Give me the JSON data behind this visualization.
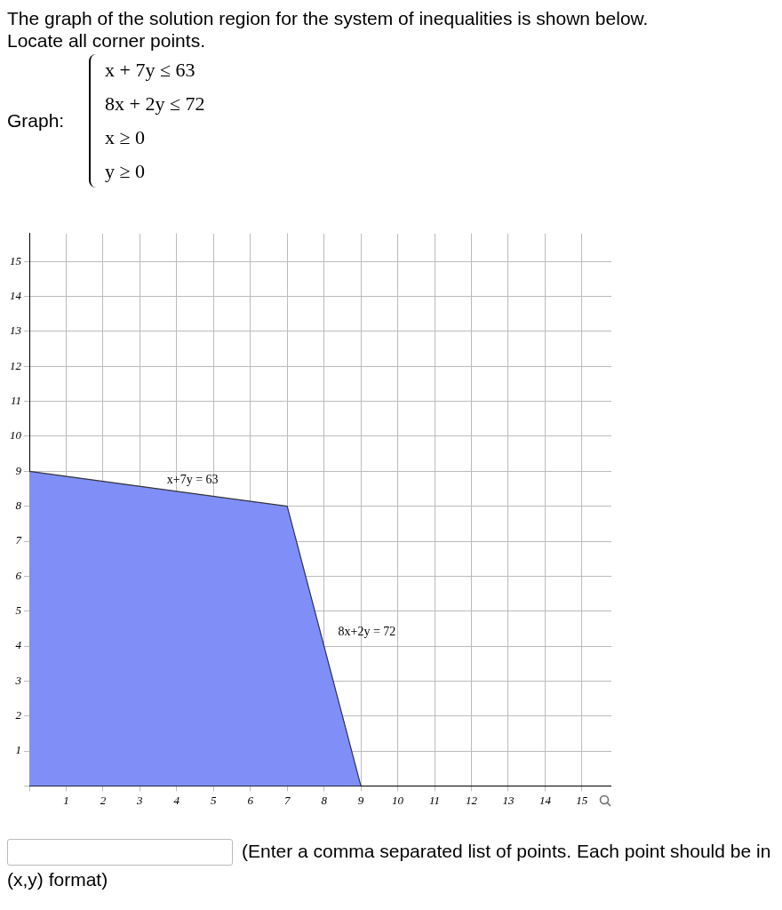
{
  "chart_data": {
    "type": "area",
    "title": "The graph of the solution region for the system of inequalities is shown below. Locate all corner points.",
    "x": [
      0,
      7,
      9
    ],
    "values": [
      9,
      8,
      0
    ],
    "color": "#7f8ff7",
    "xlim": [
      0,
      15.8
    ],
    "ylim": [
      0,
      15.8
    ],
    "xticks": [
      {
        "value": 0,
        "label": null
      },
      1,
      2,
      3,
      4,
      5,
      6,
      7,
      8,
      9,
      10,
      11,
      12,
      13,
      14,
      15
    ],
    "yticks": [
      {
        "value": 0,
        "label": null
      },
      1,
      2,
      3,
      4,
      5,
      6,
      7,
      8,
      9,
      10,
      11,
      12,
      13,
      14,
      15
    ],
    "grid": true,
    "annotations": [
      "Graph:",
      "x + 7y ≤ 63",
      "8x + 2y ≤ 72",
      "x ≥ 0",
      "y ≥ 0",
      {
        "text": "x+7y = 63",
        "x": 3.3,
        "y": 8.53
      },
      {
        "text": "8x+2y = 72",
        "x": 7.95,
        "y": 4.2
      },
      "(Enter a comma separated list of points. Each point should be in (x,y) format)"
    ]
  }
}
